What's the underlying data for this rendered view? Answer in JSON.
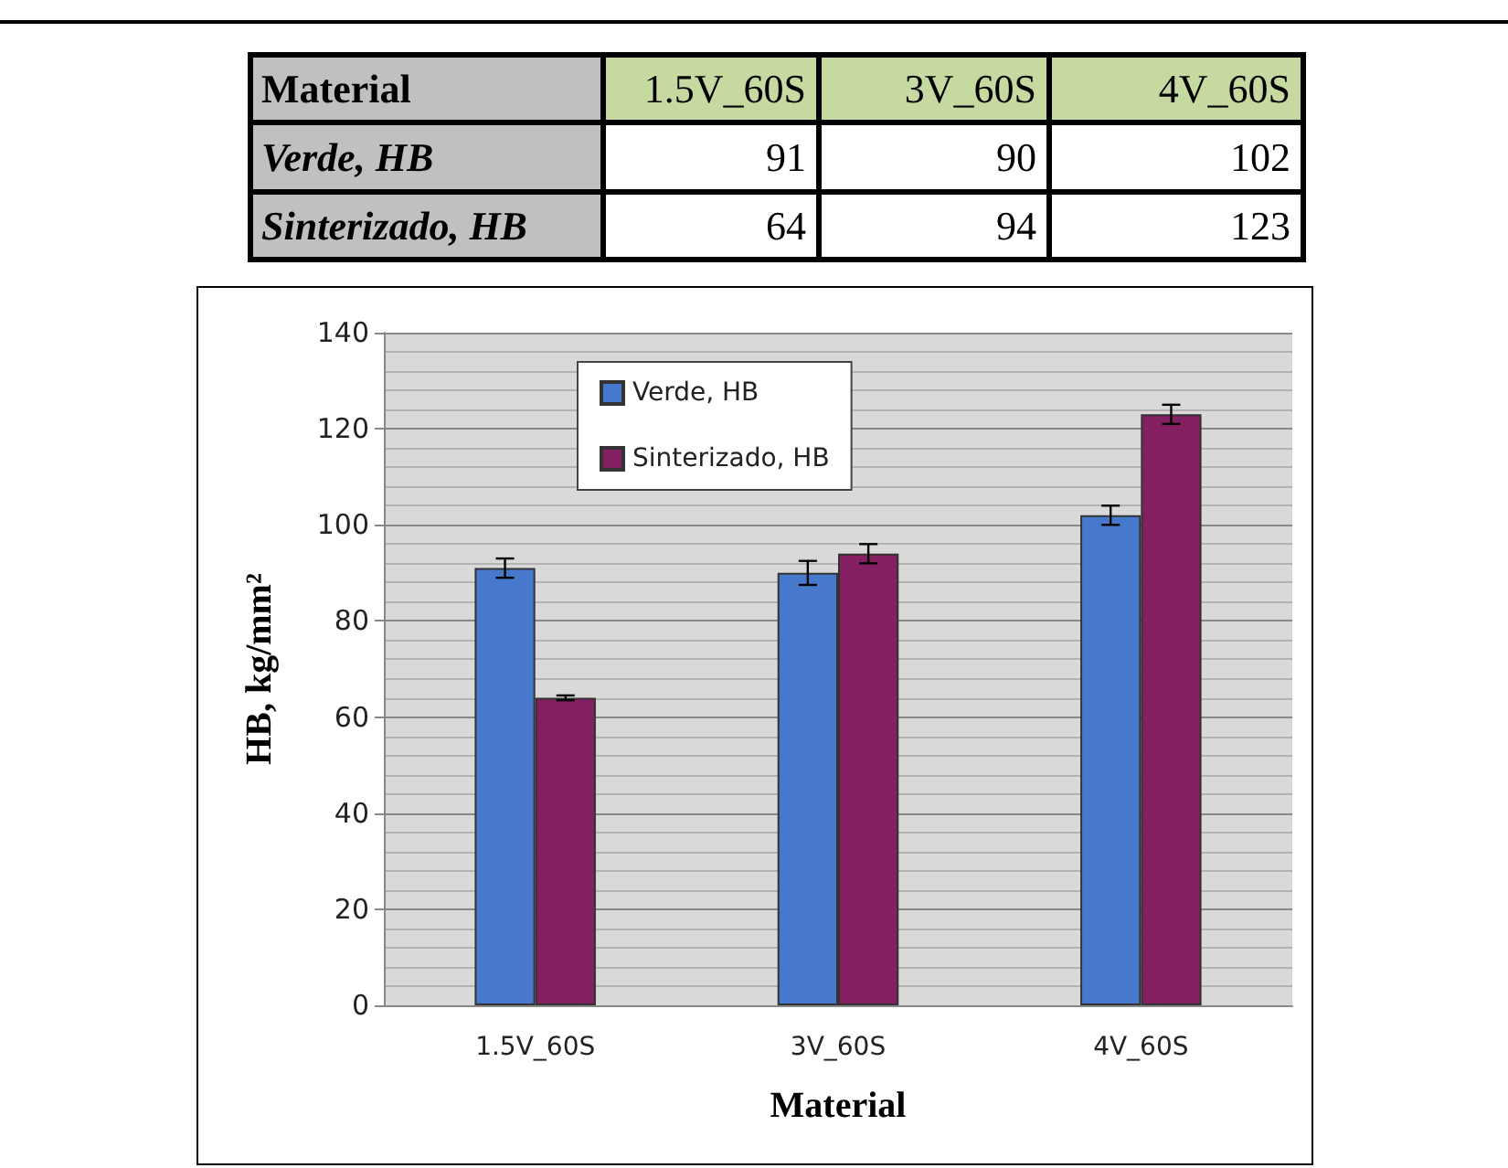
{
  "chart_data": [
    {
      "type": "other",
      "xlabel": "Material",
      "categories": [
        "1.5V_60S",
        "3V_60S",
        "4V_60S"
      ],
      "series": [
        {
          "name": "Verde, HB",
          "values": [
            91,
            90,
            102
          ]
        },
        {
          "name": "Sinterizado, HB",
          "values": [
            64,
            94,
            123
          ]
        }
      ],
      "data_labels": true
    },
    {
      "type": "bar",
      "xlabel": "Material",
      "ylabel": "HB, kg/mm²",
      "categories": [
        "1.5V_60S",
        "3V_60S",
        "4V_60S"
      ],
      "series": [
        {
          "name": "Verde, HB",
          "color": "#4679cc",
          "values": [
            91,
            90,
            102
          ],
          "errors": [
            2,
            2.5,
            2
          ]
        },
        {
          "name": "Sinterizado, HB",
          "color": "#841f62",
          "values": [
            64,
            94,
            123
          ],
          "errors": [
            0.5,
            2,
            2
          ]
        }
      ],
      "ylim": [
        0,
        140
      ],
      "yticks": [
        0,
        20,
        40,
        60,
        80,
        100,
        120,
        140
      ],
      "grid": true,
      "legend": "top left"
    }
  ]
}
